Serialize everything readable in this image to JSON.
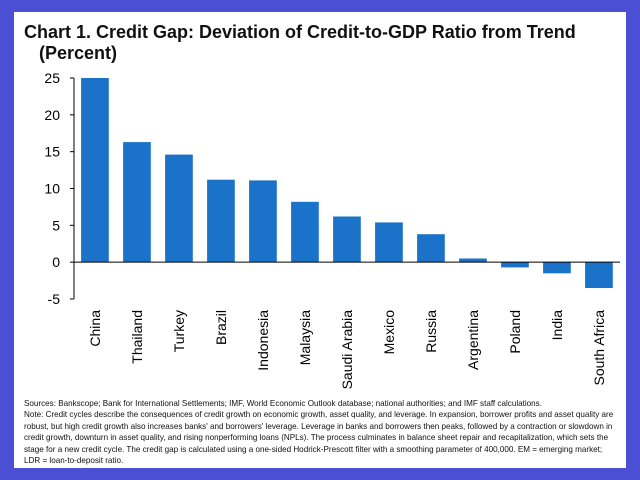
{
  "title": "Chart 1. Credit Gap: Deviation of Credit-to-GDP Ratio from Trend",
  "subtitle": "(Percent)",
  "colors": {
    "bar": "#1a73c9",
    "background": "#4a4fd4"
  },
  "chart_data": {
    "type": "bar",
    "categories": [
      "China",
      "Thailand",
      "Turkey",
      "Brazil",
      "Indonesia",
      "Malaysia",
      "Saudi Arabia",
      "Mexico",
      "Russia",
      "Argentina",
      "Poland",
      "India",
      "South Africa"
    ],
    "values": [
      25.0,
      16.3,
      14.6,
      11.2,
      11.1,
      8.2,
      6.2,
      5.4,
      3.8,
      0.5,
      -0.7,
      -1.5,
      -3.5
    ],
    "ylim": [
      -5,
      25
    ],
    "yticks": [
      -5,
      0,
      5,
      10,
      15,
      20,
      25
    ],
    "grid": false
  },
  "sources": "Sources: Bankscope; Bank for International Settlements; IMF, World Economic Outlook database; national authorities; and IMF staff calculations.",
  "note": "Note: Credit cycles describe the consequences of credit growth on economic growth, asset quality, and leverage. In expansion, borrower profits and asset quality are robust, but high credit growth also increases banks' and borrowers' leverage. Leverage in banks and borrowers then peaks, followed by a contraction or slowdown in credit growth, downturn in asset quality, and rising nonperforming loans (NPLs). The process culminates in balance sheet repair and recapitalization, which sets the stage for a new credit cycle. The credit gap is calculated using a one-sided Hodrick-Prescott filter with a smoothing parameter of 400,000. EM = emerging market; LDR = loan-to-deposit ratio."
}
